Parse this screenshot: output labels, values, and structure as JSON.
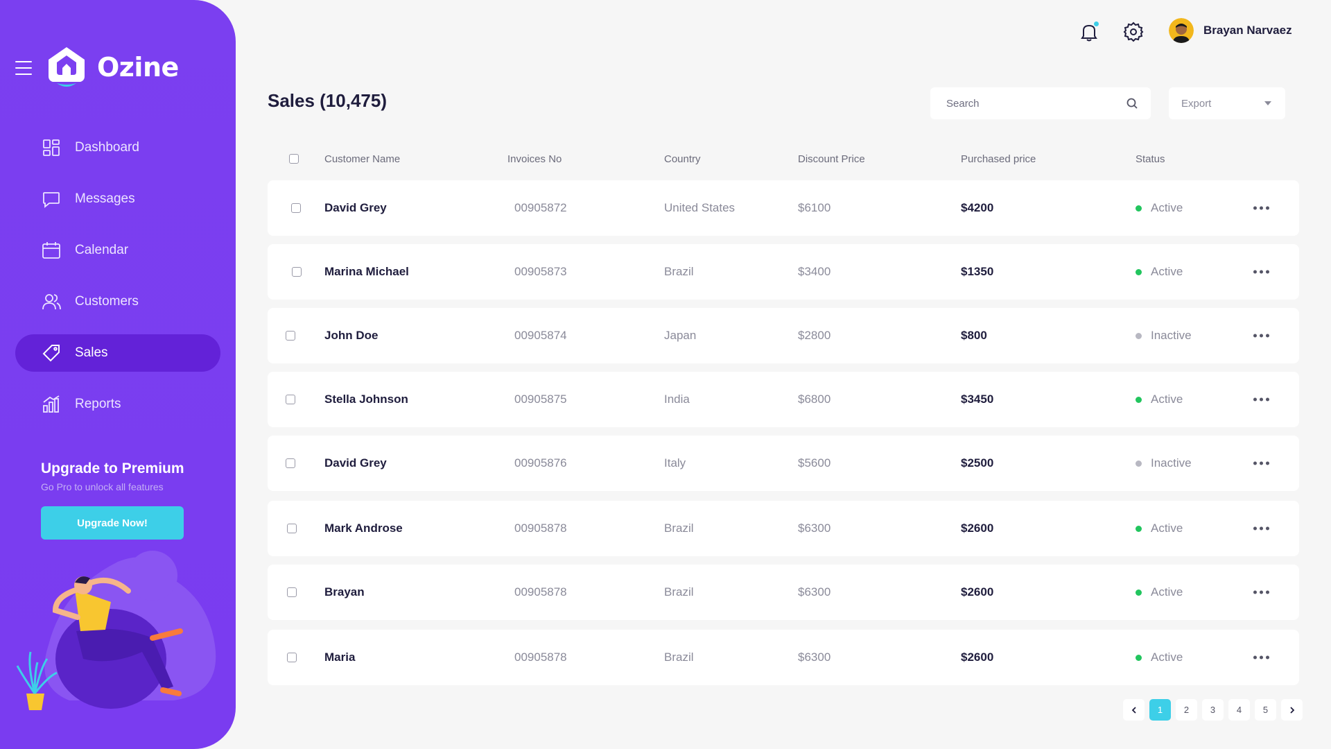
{
  "app": {
    "name": "Ozine"
  },
  "colors": {
    "sidebar": "#7b3ff0",
    "sidebar_active": "#6322d8",
    "accent": "#3dcfe8",
    "active_status": "#22c55e",
    "inactive_status": "#b8b8c2"
  },
  "sidebar": {
    "items": [
      {
        "label": "Dashboard",
        "icon": "dashboard-icon",
        "active": false
      },
      {
        "label": "Messages",
        "icon": "chat-bubble-icon",
        "active": false
      },
      {
        "label": "Calendar",
        "icon": "calendar-icon",
        "active": false
      },
      {
        "label": "Customers",
        "icon": "users-icon",
        "active": false
      },
      {
        "label": "Sales",
        "icon": "tag-icon",
        "active": true
      },
      {
        "label": "Reports",
        "icon": "bar-chart-icon",
        "active": false
      }
    ],
    "premium": {
      "title": "Upgrade to Premium",
      "subtitle": "Go Pro to unlock all features",
      "button": "Upgrade Now!"
    }
  },
  "topbar": {
    "user_name": "Brayan Narvaez"
  },
  "header": {
    "title": "Sales (10,475)",
    "search_placeholder": "Search",
    "export_label": "Export"
  },
  "table": {
    "columns": [
      "Customer Name",
      "Invoices No",
      "Country",
      "Discount Price",
      "Purchased price",
      "Status"
    ],
    "rows": [
      {
        "name": "David Grey",
        "invoice": "00905872",
        "country": "United States",
        "discount": "$6100",
        "price": "$4200",
        "status": "Active"
      },
      {
        "name": "Marina Michael",
        "invoice": "00905873",
        "country": "Brazil",
        "discount": "$3400",
        "price": "$1350",
        "status": "Active"
      },
      {
        "name": "John Doe",
        "invoice": "00905874",
        "country": "Japan",
        "discount": "$2800",
        "price": "$800",
        "status": "Inactive"
      },
      {
        "name": "Stella Johnson",
        "invoice": "00905875",
        "country": "India",
        "discount": "$6800",
        "price": "$3450",
        "status": "Active"
      },
      {
        "name": "David Grey",
        "invoice": "00905876",
        "country": "Italy",
        "discount": "$5600",
        "price": "$2500",
        "status": "Inactive"
      },
      {
        "name": "Mark Androse",
        "invoice": "00905878",
        "country": "Brazil",
        "discount": "$6300",
        "price": "$2600",
        "status": "Active"
      },
      {
        "name": "Brayan",
        "invoice": "00905878",
        "country": "Brazil",
        "discount": "$6300",
        "price": "$2600",
        "status": "Active"
      },
      {
        "name": "Maria",
        "invoice": "00905878",
        "country": "Brazil",
        "discount": "$6300",
        "price": "$2600",
        "status": "Active"
      }
    ]
  },
  "pagination": {
    "pages": [
      "1",
      "2",
      "3",
      "4",
      "5"
    ],
    "current": "1"
  }
}
